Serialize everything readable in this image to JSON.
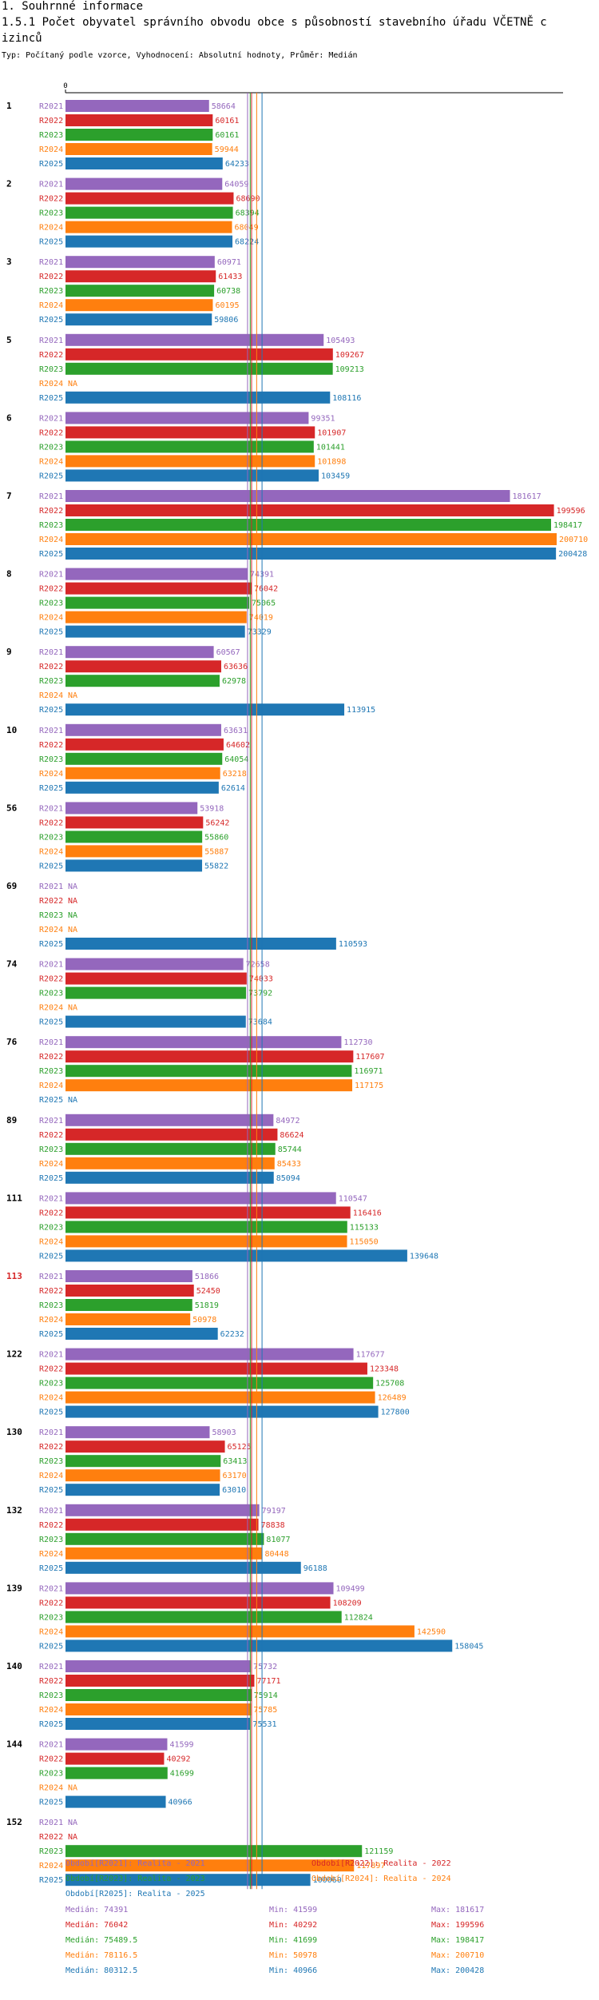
{
  "header": {
    "section": "1. Souhrnné informace",
    "title_line1": "1.5.1 Počet obyvatel správního obvodu obce s působností stavebního úřadu VČETNĚ c",
    "title_line2": "izinců",
    "subtitle": "Typ: Počítaný podle vzorce, Vyhodnocení: Absolutní hodnoty, Průměr: Medián"
  },
  "chart_data": {
    "type": "bar",
    "orientation": "horizontal",
    "axis_zero_label": "0",
    "xlim": [
      0,
      200710
    ],
    "series": [
      {
        "name": "R2021",
        "color": "#9467bd",
        "legend": "Období[R2021]: Realita - 2021",
        "median_label": "Medián: 74391",
        "min_label": "Min: 41599",
        "max_label": "Max: 181617",
        "median": 74391
      },
      {
        "name": "R2022",
        "color": "#d62728",
        "legend": "Období[R2022]: Realita - 2022",
        "median_label": "Medián: 76042",
        "min_label": "Min: 40292",
        "max_label": "Max: 199596",
        "median": 76042
      },
      {
        "name": "R2023",
        "color": "#2ca02c",
        "legend": "Období[R2023]: Realita - 2023",
        "median_label": "Medián: 75489.5",
        "min_label": "Min: 41699",
        "max_label": "Max: 198417",
        "median": 75489.5
      },
      {
        "name": "R2024",
        "color": "#ff7f0e",
        "legend": "Období[R2024]: Realita - 2024",
        "median_label": "Medián: 78116.5",
        "min_label": "Min: 50978",
        "max_label": "Max: 200710",
        "median": 78116.5
      },
      {
        "name": "R2025",
        "color": "#1f77b4",
        "legend": "Období[R2025]: Realita - 2025",
        "median_label": "Medián: 80312.5",
        "min_label": "Min: 40966",
        "max_label": "Max: 200428",
        "median": 80312.5
      }
    ],
    "na_label": "NA",
    "groups": [
      {
        "label": "1",
        "highlight": false,
        "values": [
          58664,
          60161,
          60161,
          59944,
          64233
        ]
      },
      {
        "label": "2",
        "highlight": false,
        "values": [
          64059,
          68690,
          68394,
          68049,
          68224
        ]
      },
      {
        "label": "3",
        "highlight": false,
        "values": [
          60971,
          61433,
          60738,
          60195,
          59806
        ]
      },
      {
        "label": "5",
        "highlight": false,
        "values": [
          105493,
          109267,
          109213,
          null,
          108116
        ]
      },
      {
        "label": "6",
        "highlight": false,
        "values": [
          99351,
          101907,
          101441,
          101898,
          103459
        ]
      },
      {
        "label": "7",
        "highlight": false,
        "values": [
          181617,
          199596,
          198417,
          200710,
          200428
        ]
      },
      {
        "label": "8",
        "highlight": false,
        "values": [
          74391,
          76042,
          75065,
          74019,
          73329
        ]
      },
      {
        "label": "9",
        "highlight": false,
        "values": [
          60567,
          63636,
          62978,
          null,
          113915
        ]
      },
      {
        "label": "10",
        "highlight": false,
        "values": [
          63631,
          64602,
          64054,
          63218,
          62614
        ]
      },
      {
        "label": "56",
        "highlight": false,
        "values": [
          53918,
          56242,
          55860,
          55887,
          55822
        ]
      },
      {
        "label": "69",
        "highlight": false,
        "values": [
          null,
          null,
          null,
          null,
          110593
        ]
      },
      {
        "label": "74",
        "highlight": false,
        "values": [
          72658,
          74033,
          73792,
          null,
          73684
        ]
      },
      {
        "label": "76",
        "highlight": false,
        "values": [
          112730,
          117607,
          116971,
          117175,
          null
        ]
      },
      {
        "label": "89",
        "highlight": false,
        "values": [
          84972,
          86624,
          85744,
          85433,
          85094
        ]
      },
      {
        "label": "111",
        "highlight": false,
        "values": [
          110547,
          116416,
          115133,
          115050,
          139648
        ]
      },
      {
        "label": "113",
        "highlight": true,
        "values": [
          51866,
          52450,
          51819,
          50978,
          62232
        ]
      },
      {
        "label": "122",
        "highlight": false,
        "values": [
          117677,
          123348,
          125708,
          126489,
          127800
        ]
      },
      {
        "label": "130",
        "highlight": false,
        "values": [
          58903,
          65125,
          63413,
          63170,
          63010
        ]
      },
      {
        "label": "132",
        "highlight": false,
        "values": [
          79197,
          78838,
          81077,
          80448,
          96188
        ]
      },
      {
        "label": "139",
        "highlight": false,
        "values": [
          109499,
          108209,
          112824,
          142590,
          158045
        ]
      },
      {
        "label": "140",
        "highlight": false,
        "values": [
          75732,
          77171,
          75914,
          75785,
          75531
        ]
      },
      {
        "label": "144",
        "highlight": false,
        "values": [
          41599,
          40292,
          41699,
          null,
          40966
        ]
      },
      {
        "label": "152",
        "highlight": false,
        "values": [
          null,
          null,
          121159,
          117897,
          100060
        ]
      }
    ]
  }
}
